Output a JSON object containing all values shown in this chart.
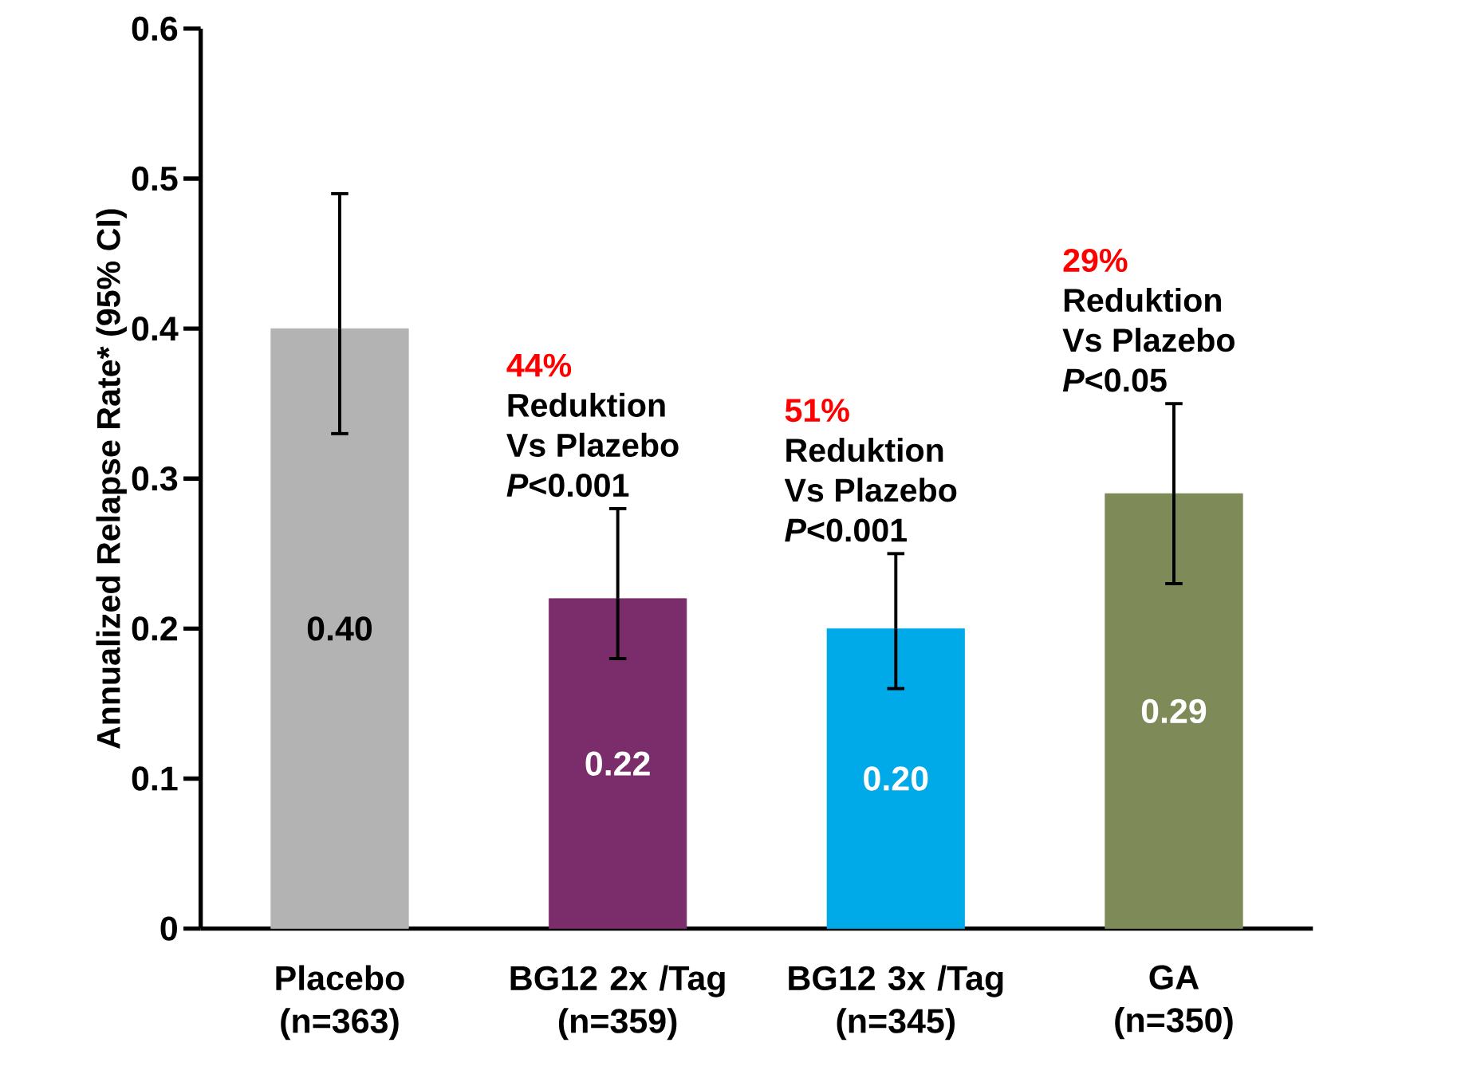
{
  "chart_data": {
    "type": "bar",
    "ylabel": "Annualized Relapse Rate* (95% CI)",
    "categories": [
      "Placebo\n(n=363)",
      "BG12 2x /Tag\n(n=359)",
      "BG12 3x /Tag\n(n=345)",
      "GA\n(n=350)"
    ],
    "values": [
      0.4,
      0.22,
      0.2,
      0.29
    ],
    "colors": [
      "#b3b3b3",
      "#7b2d6b",
      "#00aae8",
      "#7e8a58"
    ],
    "errors": [
      [
        0.33,
        0.49
      ],
      [
        0.18,
        0.28
      ],
      [
        0.16,
        0.25
      ],
      [
        0.23,
        0.35
      ]
    ],
    "value_labels": [
      "0.40",
      "0.22",
      "0.20",
      "0.29"
    ],
    "ylim": [
      0,
      0.6
    ],
    "yticks": [
      0,
      0.1,
      0.2,
      0.3,
      0.4,
      0.5,
      0.6
    ],
    "annotations": [
      "44%",
      "Reduktion",
      "Vs Plazebo",
      "*P*<0.001",
      "51%",
      "Reduktion",
      "Vs Plazebo",
      "*P*<0.001",
      "29%",
      "Reduktion",
      "Vs Plazebo",
      "*P*<0.05"
    ]
  }
}
